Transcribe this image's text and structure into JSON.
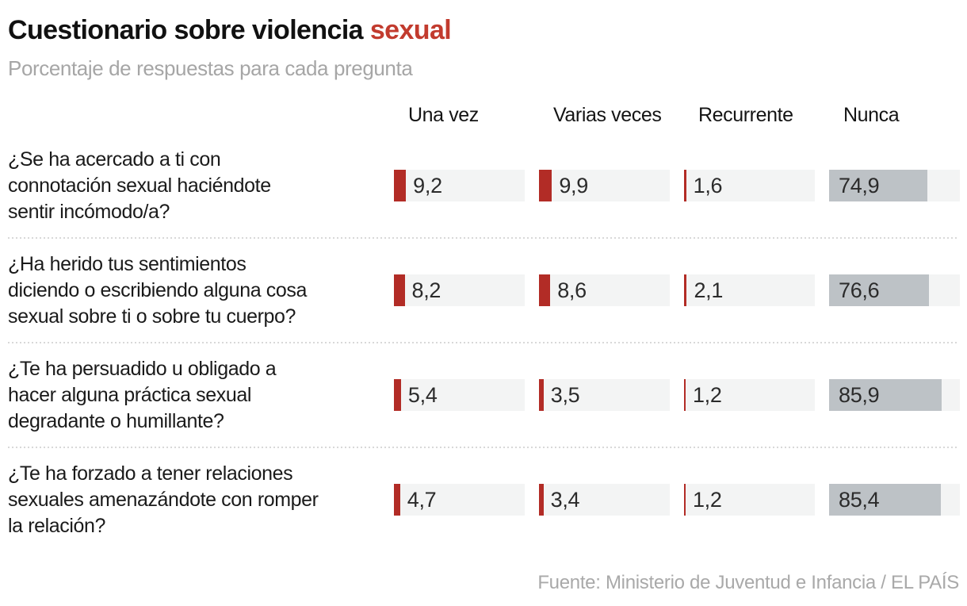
{
  "title": {
    "black": "Cuestionario sobre violencia",
    "red": "sexual"
  },
  "subtitle": "Porcentaje de respuestas para cada pregunta",
  "columns": [
    "Una vez",
    "Varias veces",
    "Recurrente",
    "Nunca"
  ],
  "source": "Fuente: Ministerio de Juventud e Infancia / EL PAÍS",
  "colors": {
    "title_red": "#c23b2e",
    "bar_red": "#b22c26",
    "bar_gray": "#bdc2c6",
    "track": "#f3f4f4",
    "text_dark": "#1a1a1a",
    "muted_gray": "#a6a6a6",
    "separator_dotted": "#d8d8d8"
  },
  "chart_data": {
    "type": "bar",
    "orientation": "horizontal",
    "unit": "percent",
    "xlim": [
      0,
      100
    ],
    "title": "Cuestionario sobre violencia sexual",
    "subtitle": "Porcentaje de respuestas para cada pregunta",
    "source": "Fuente: Ministerio de Juventud e Infancia / EL PAÍS",
    "categories": [
      "Una vez",
      "Varias veces",
      "Recurrente",
      "Nunca"
    ],
    "rows": [
      {
        "question": "¿Se ha acercado a ti con connotación sexual haciéndote sentir incómodo/a?",
        "lines": [
          "¿Se ha acercado a ti con",
          "connotación sexual haciéndote",
          "sentir incómodo/a?"
        ],
        "values": [
          9.2,
          9.9,
          1.6,
          74.9
        ],
        "labels": [
          "9,2",
          "9,9",
          "1,6",
          "74,9"
        ]
      },
      {
        "question": "¿Ha herido tus sentimientos diciendo o escribiendo alguna cosa sexual sobre ti o sobre tu cuerpo?",
        "lines": [
          "¿Ha herido tus sentimientos",
          "diciendo o escribiendo alguna cosa",
          "sexual sobre ti o sobre tu cuerpo?"
        ],
        "values": [
          8.2,
          8.6,
          2.1,
          76.6
        ],
        "labels": [
          "8,2",
          "8,6",
          "2,1",
          "76,6"
        ]
      },
      {
        "question": "¿Te ha persuadido u obligado a hacer alguna práctica sexual degradante o humillante?",
        "lines": [
          "¿Te ha persuadido u obligado a",
          "hacer alguna práctica sexual",
          "degradante o humillante?"
        ],
        "values": [
          5.4,
          3.5,
          1.2,
          85.9
        ],
        "labels": [
          "5,4",
          "3,5",
          "1,2",
          "85,9"
        ]
      },
      {
        "question": "¿Te ha forzado a tener relaciones sexuales amenazándote con romper la relación?",
        "lines": [
          "¿Te ha forzado a tener relaciones",
          "sexuales amenazándote con romper",
          "la relación?"
        ],
        "values": [
          4.7,
          3.4,
          1.2,
          85.4
        ],
        "labels": [
          "4,7",
          "3,4",
          "1,2",
          "85,4"
        ]
      }
    ]
  }
}
